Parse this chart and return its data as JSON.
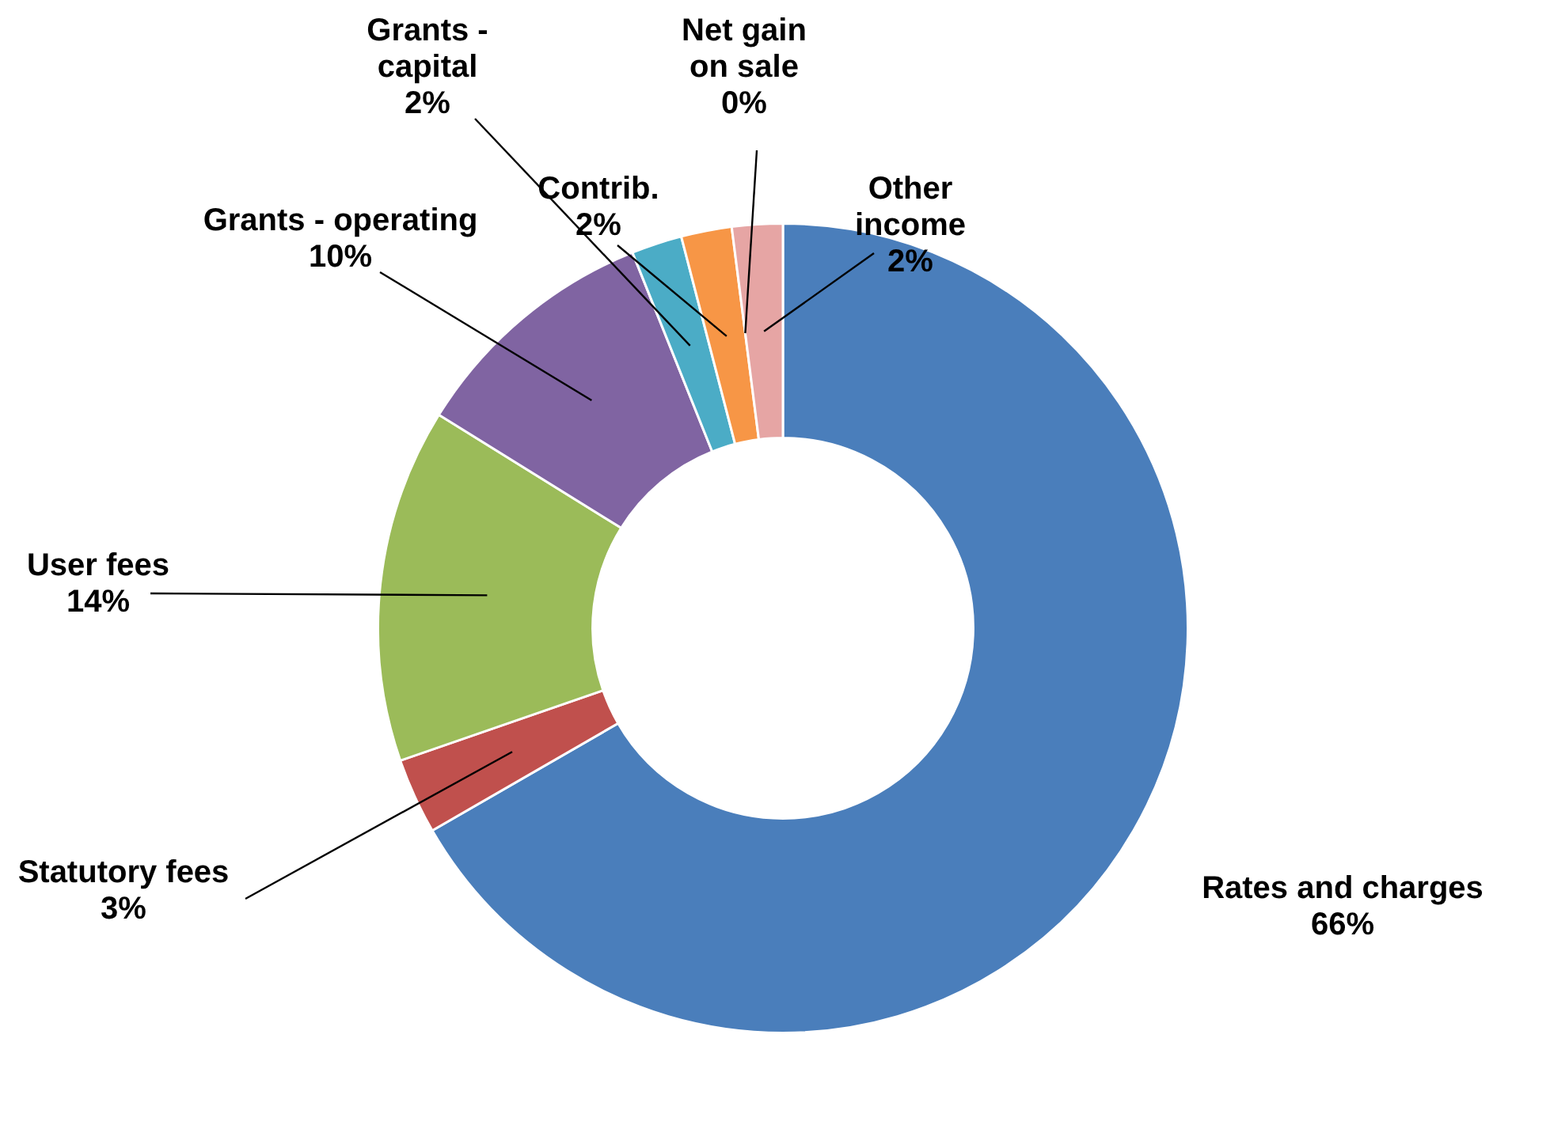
{
  "chart_data": {
    "type": "donut",
    "categories": [
      "Rates and charges",
      "Statutory fees",
      "User fees",
      "Grants - operating",
      "Grants - capital",
      "Contrib.",
      "Net gain on sale",
      "Other income"
    ],
    "values": [
      66,
      3,
      14,
      10,
      2,
      2,
      0,
      2
    ],
    "value_labels": [
      "66%",
      "3%",
      "14%",
      "10%",
      "2%",
      "2%",
      "0%",
      "2%"
    ],
    "colors": [
      "#4a7ebb",
      "#c0504d",
      "#9bbb59",
      "#8064a2",
      "#4bacc6",
      "#f79646",
      "#c0504d",
      "#e6a5a4"
    ],
    "legend": false
  }
}
